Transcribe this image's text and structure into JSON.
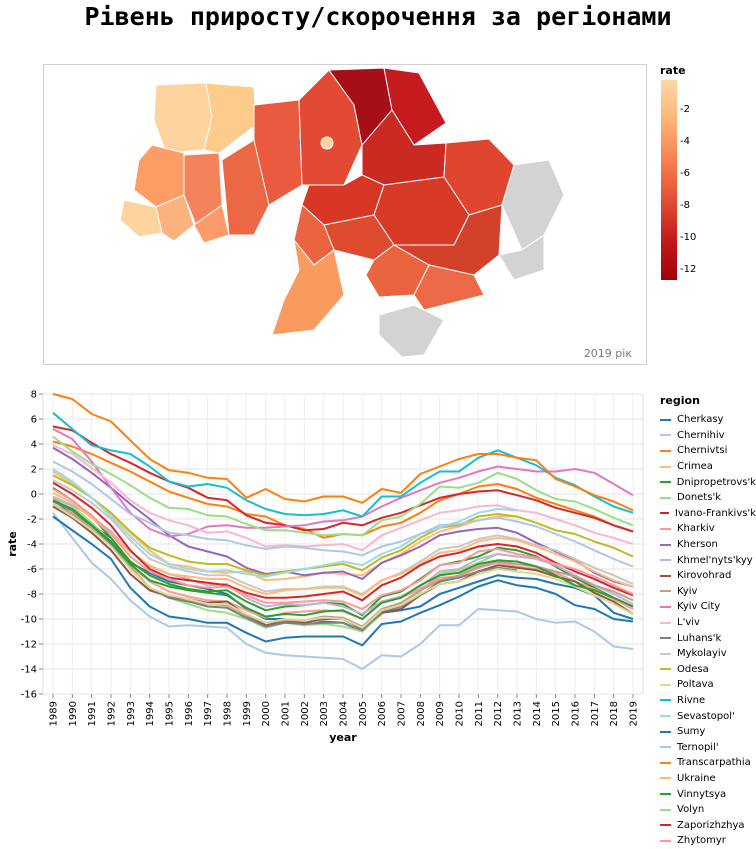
{
  "title": "Рівень приросту/скорочення за регіонами",
  "map": {
    "year_label": "2019 рік",
    "legend_title": "rate",
    "legend_ticks": [
      "-2",
      "-4",
      "-6",
      "-8",
      "-10",
      "-12"
    ],
    "colors": {
      "light": "#fed7a2",
      "dark": "#a10009",
      "nodata": "#d3d3d3"
    }
  },
  "chart_data": {
    "type": "line",
    "x": [
      1989,
      1990,
      1991,
      1992,
      1993,
      1994,
      1995,
      1996,
      1997,
      1998,
      1999,
      2000,
      2001,
      2002,
      2003,
      2004,
      2005,
      2006,
      2007,
      2008,
      2009,
      2010,
      2011,
      2012,
      2013,
      2014,
      2015,
      2016,
      2017,
      2018,
      2019
    ],
    "x_ticks": [
      "1989",
      "1990",
      "1991",
      "1992",
      "1993",
      "1994",
      "1995",
      "1996",
      "1997",
      "1998",
      "1999",
      "2000",
      "2001",
      "2002",
      "2003",
      "2004",
      "2005",
      "2006",
      "2007",
      "2008",
      "2009",
      "2010",
      "2011",
      "2012",
      "2013",
      "2014",
      "2015",
      "2016",
      "2017",
      "2018",
      "2019"
    ],
    "xlabel": "year",
    "ylabel": "rate",
    "ylim": [
      -16,
      8
    ],
    "y_ticks": [
      "8",
      "6",
      "4",
      "2",
      "0",
      "-2",
      "-4",
      "-6",
      "-8",
      "-10",
      "-12",
      "-14",
      "-16"
    ],
    "grid": true,
    "legend_title": "region",
    "legend_position": "right",
    "series": [
      {
        "name": "Cherkasy",
        "color": "#1f77b4",
        "values": [
          -0.5,
          -1.5,
          -2.5,
          -3.5,
          -5.5,
          -6.3,
          -7,
          -7.3,
          -7.6,
          -8,
          -9.2,
          -10,
          -10,
          -10.5,
          -10.2,
          -10.3,
          -11,
          -9.5,
          -9.3,
          -9,
          -8,
          -7.5,
          -7,
          -6.5,
          -6.7,
          -6.8,
          -7.2,
          -7.5,
          -8.1,
          -9.5,
          -10
        ]
      },
      {
        "name": "Chernihiv",
        "color": "#aec7e8",
        "values": [
          -1.5,
          -3.5,
          -5.5,
          -6.8,
          -8.5,
          -9.8,
          -10.6,
          -10.5,
          -10.6,
          -10.7,
          -12,
          -12.7,
          -12.9,
          -13,
          -13.1,
          -13.2,
          -14,
          -12.9,
          -13,
          -12,
          -10.5,
          -10.5,
          -9.2,
          -9.3,
          -9.4,
          -10,
          -10.3,
          -10.2,
          -11,
          -12.2,
          -12.4
        ]
      },
      {
        "name": "Chernivtsi",
        "color": "#ff7f0e",
        "values": [
          4.2,
          3.8,
          3.2,
          2.5,
          1.8,
          1,
          0.2,
          -0.3,
          -0.8,
          -1,
          -1.6,
          -1.8,
          -2.5,
          -2.8,
          -3.5,
          -3.2,
          -3.3,
          -2.6,
          -2.3,
          -1.5,
          -0.5,
          0,
          0.6,
          0.8,
          0.4,
          -0.3,
          -0.8,
          -1.3,
          -1.8,
          -2.5,
          -3
        ]
      },
      {
        "name": "Crimea",
        "color": "#ffbb78",
        "values": [
          1.8,
          0.8,
          -0.3,
          -1.6,
          -3.1,
          -4.5,
          -5.6,
          -5.8,
          -6.2,
          -6.3,
          -6.2,
          -6.9,
          -6.8,
          -6.6,
          -6.3,
          -6.4,
          -6.5,
          -5.5,
          -4.8,
          -3.8,
          -3,
          -2.6,
          -2.1,
          -1.8,
          -1.8,
          null,
          null,
          null,
          null,
          null,
          null
        ]
      },
      {
        "name": "Dnipropetrovs'k",
        "color": "#2ca02c",
        "values": [
          0.5,
          -0.5,
          -1.8,
          -3.5,
          -5.4,
          -6.5,
          -7.2,
          -7.6,
          -7.8,
          -7.7,
          -8.6,
          -9.3,
          -9,
          -8.9,
          -8.7,
          -8.8,
          -9.7,
          -8.2,
          -7.8,
          -6.8,
          -5.7,
          -5.4,
          -5,
          -4.3,
          -4.5,
          -5,
          -5.8,
          -6.7,
          -7.5,
          -8.3,
          -9
        ]
      },
      {
        "name": "Donets'k",
        "color": "#98df8a",
        "values": [
          -0.3,
          -1,
          -2.3,
          -3.8,
          -5.8,
          -7.5,
          -8.3,
          -8.8,
          -9.3,
          -9.5,
          -10,
          -10.7,
          -10.3,
          -10.5,
          -10.4,
          -10.6,
          -11,
          -9.6,
          -8.7,
          -7.8,
          -6.4,
          -6.1,
          -5.5,
          -4.8,
          -5,
          null,
          null,
          null,
          null,
          null,
          null
        ]
      },
      {
        "name": "Ivano-Frankivs'k",
        "color": "#d62728",
        "values": [
          5.4,
          5.1,
          4.1,
          3.2,
          2.5,
          1.7,
          1,
          0.5,
          -0.3,
          -0.5,
          -1.7,
          -2.3,
          -2.5,
          -2.9,
          -2.8,
          -2.3,
          -2.5,
          -1.9,
          -1.5,
          -0.9,
          -0.3,
          0,
          0.2,
          0.3,
          -0.1,
          -0.5,
          -1.1,
          -1.5,
          -1.9,
          -2.5,
          -3
        ]
      },
      {
        "name": "Kharkiv",
        "color": "#ff9896",
        "values": [
          -0.3,
          -1.5,
          -2.8,
          -4.2,
          -5.7,
          -7,
          -7.8,
          -8.2,
          -8.5,
          -8.6,
          -9.3,
          -9.9,
          -9.5,
          -9.4,
          -9.3,
          -9.4,
          -10,
          -8.6,
          -8.3,
          -7.6,
          -6.7,
          -6.6,
          -5.9,
          -5.5,
          -5.8,
          -6,
          -6.3,
          -7,
          -7.6,
          -8.4,
          -9.2
        ]
      },
      {
        "name": "Kherson",
        "color": "#9467bd",
        "values": [
          3.7,
          2.8,
          1.7,
          0.5,
          -0.8,
          -2,
          -3.3,
          -4.2,
          -4.6,
          -5,
          -5.9,
          -6.4,
          -6.2,
          -6.5,
          -6.3,
          -6.2,
          -6.8,
          -5.5,
          -4.9,
          -4.2,
          -3.3,
          -3,
          -2.8,
          -2.7,
          -3.1,
          -3.9,
          -4.6,
          -5.3,
          -6.3,
          -7,
          -7.4
        ]
      },
      {
        "name": "Khmel'nyts'kyy",
        "color": "#c5b0d5",
        "values": [
          -0.2,
          -0.9,
          -1.8,
          -3,
          -4.6,
          -5.8,
          -6.4,
          -6.8,
          -7.3,
          -7.2,
          -8.3,
          -9,
          -8.8,
          -8.9,
          -8.7,
          -9,
          -9.6,
          -8.6,
          -8.2,
          -7.4,
          -6.2,
          -6,
          -5.2,
          -4.8,
          -5,
          -5.2,
          -5.7,
          -6.5,
          -7.3,
          -8,
          -8.8
        ]
      },
      {
        "name": "Kirovohrad",
        "color": "#8c564b",
        "values": [
          -1,
          -1.9,
          -3.1,
          -4.5,
          -6.4,
          -7.7,
          -8.2,
          -8.4,
          -8.7,
          -8.6,
          -9.7,
          -10.5,
          -10.2,
          -10.3,
          -10,
          -10,
          -10.8,
          -9.5,
          -9.2,
          -8.1,
          -7.2,
          -7,
          -6.2,
          -5.7,
          -5.9,
          -6.1,
          -6.6,
          -7,
          -7.9,
          -8.6,
          -9.6
        ]
      },
      {
        "name": "Kyiv",
        "color": "#c49c94",
        "values": [
          -0.8,
          -1.6,
          -2.7,
          -4,
          -5.8,
          -7.5,
          -8.3,
          -8.6,
          -8.8,
          -8.9,
          -9.7,
          -10.3,
          -10.1,
          -10.1,
          -9.8,
          -9.9,
          -10.6,
          -9.2,
          -8.7,
          -7.7,
          -6.9,
          -6.5,
          -5.8,
          -5.4,
          -5.6,
          -5.8,
          -6.2,
          -6.6,
          -7.3,
          -7.8,
          -8.5
        ]
      },
      {
        "name": "Kyiv City",
        "color": "#e377c2",
        "values": [
          5.2,
          4.4,
          2.6,
          0.5,
          -1.5,
          -2.8,
          -3.4,
          -3.2,
          -2.6,
          -2.5,
          -2.7,
          -2.7,
          -2.6,
          -2.5,
          -2.2,
          -2.1,
          -1.8,
          -1,
          -0.3,
          0.3,
          0.9,
          1.3,
          1.8,
          2.2,
          2,
          1.8,
          1.8,
          2,
          1.7,
          0.8,
          -0.1
        ]
      },
      {
        "name": "L'viv",
        "color": "#f7b6d2",
        "values": [
          3.9,
          3.2,
          2.1,
          0.9,
          -0.5,
          -1.5,
          -2.1,
          -2.5,
          -3.1,
          -3,
          -3.5,
          -4.2,
          -4.1,
          -4.2,
          -4.1,
          -4,
          -4.5,
          -3.3,
          -2.7,
          -2.1,
          -1.5,
          -1.3,
          -1,
          -0.9,
          -1.3,
          -1.5,
          -2,
          -2.5,
          -3.1,
          -3.5,
          -4
        ]
      },
      {
        "name": "Luhans'k",
        "color": "#7f7f7f",
        "values": [
          -0.6,
          -1.3,
          -2.5,
          -4,
          -6,
          -7.5,
          -8.3,
          -8.6,
          -9,
          -9.1,
          -9.9,
          -10.6,
          -10.3,
          -10.4,
          -10.3,
          -10.3,
          -10.9,
          -9.4,
          -9,
          -8.1,
          -7,
          -6.7,
          -6.2,
          -5.9,
          -6.1,
          null,
          null,
          null,
          null,
          null,
          null
        ]
      },
      {
        "name": "Mykolayiv",
        "color": "#c7c7c7",
        "values": [
          1.1,
          0.3,
          -0.7,
          -2,
          -3.7,
          -5.2,
          -5.8,
          -6.2,
          -6.5,
          -6.5,
          -7.2,
          -7.8,
          -7.6,
          -7.6,
          -7.4,
          -7.4,
          -8,
          -6.9,
          -6.3,
          -5.4,
          -4.4,
          -4.2,
          -3.6,
          -3.3,
          -3.6,
          -4.1,
          -4.5,
          -5.2,
          -5.9,
          -6.5,
          -7.2
        ]
      },
      {
        "name": "Odesa",
        "color": "#bcbd22",
        "values": [
          1.5,
          0.7,
          -0.3,
          -1.5,
          -3,
          -4.3,
          -4.9,
          -5.4,
          -5.6,
          -5.6,
          -6.1,
          -6.5,
          -6.2,
          -6,
          -5.8,
          -5.6,
          -6.1,
          -5.1,
          -4.5,
          -3.5,
          -2.7,
          -2.5,
          -1.8,
          -1.6,
          -1.8,
          -2.3,
          -2.9,
          -3.2,
          -3.8,
          -4.3,
          -5
        ]
      },
      {
        "name": "Poltava",
        "color": "#dbdb8d",
        "values": [
          -0.8,
          -1.8,
          -2.9,
          -4.2,
          -6,
          -7.5,
          -8.1,
          -8.4,
          -8.8,
          -8.8,
          -9.6,
          -10.3,
          -10,
          -10.1,
          -9.9,
          -10,
          -10.7,
          -9.3,
          -8.9,
          -8,
          -7.2,
          -7,
          -6.4,
          -6,
          -6.2,
          -6.4,
          -6.8,
          -7.4,
          -8.1,
          -8.8,
          -9.6
        ]
      },
      {
        "name": "Rivne",
        "color": "#17becf",
        "values": [
          6.5,
          5.2,
          3.9,
          3.5,
          3.2,
          2.2,
          1,
          0.6,
          0.8,
          0.5,
          -0.5,
          -1.2,
          -1.6,
          -1.7,
          -1.6,
          -1.3,
          -1.8,
          -0.2,
          -0.2,
          0.9,
          1.8,
          1.8,
          2.9,
          3.5,
          2.9,
          2.3,
          1.3,
          0.7,
          -0.2,
          -1,
          -1.5
        ]
      },
      {
        "name": "Sevastopol'",
        "color": "#9edae5",
        "values": [
          2,
          1,
          -0.3,
          -1.8,
          -3.4,
          -4.8,
          -5.6,
          -6,
          -6.2,
          -6.1,
          -6.4,
          -6.6,
          -6.3,
          -6,
          -5.7,
          -5.4,
          -5.7,
          -4.8,
          -4.2,
          -3.2,
          -2.7,
          -2.2,
          -1.5,
          -1.2,
          -1.3,
          null,
          null,
          null,
          null,
          null,
          null
        ]
      },
      {
        "name": "Sumy",
        "color": "#1f77b4",
        "values": [
          -1.8,
          -2.9,
          -4,
          -5.2,
          -7.5,
          -9,
          -9.8,
          -10,
          -10.3,
          -10.3,
          -11.1,
          -11.8,
          -11.5,
          -11.4,
          -11.4,
          -11.4,
          -12.1,
          -10.4,
          -10.2,
          -9.5,
          -8.9,
          -8.2,
          -7.4,
          -6.9,
          -7.3,
          -7.5,
          -8,
          -8.9,
          -9.2,
          -10,
          -10.2
        ]
      },
      {
        "name": "Ternopil'",
        "color": "#aec7e8",
        "values": [
          2.6,
          1.8,
          0.8,
          -0.4,
          -1.6,
          -2.3,
          -3.1,
          -3.3,
          -3.6,
          -3.7,
          -4.1,
          -4.4,
          -4.2,
          -4.3,
          -4.5,
          -4.6,
          -4.9,
          -4.2,
          -3.8,
          -3.2,
          -2.5,
          -2.4,
          -2.1,
          -1.9,
          -2.2,
          -2.6,
          -3.2,
          -3.8,
          -4.5,
          -5.2,
          -5.8
        ]
      },
      {
        "name": "Transcarpathia",
        "color": "#ff7f0e",
        "values": [
          8,
          7.6,
          6.4,
          5.8,
          4.3,
          2.8,
          1.9,
          1.7,
          1.3,
          1.2,
          -0.3,
          0.4,
          -0.4,
          -0.6,
          -0.2,
          -0.2,
          -0.7,
          0.4,
          0.1,
          1.6,
          2.2,
          2.8,
          3.2,
          3.2,
          2.9,
          2.7,
          1.2,
          0.6,
          -0.1,
          -0.6,
          -1.3
        ]
      },
      {
        "name": "Ukraine",
        "color": "#ffbb78",
        "values": [
          0.1,
          -0.7,
          -1.9,
          -3.2,
          -4.6,
          -5.7,
          -6.4,
          -6.6,
          -6.8,
          -6.8,
          -7.5,
          -8,
          -7.7,
          -7.6,
          -7.5,
          -7.5,
          -8.1,
          -6.9,
          -6.4,
          -5.6,
          -4.7,
          -4.5,
          -3.8,
          -3.5,
          -3.7,
          -4.2,
          -4.8,
          -5.4,
          -6.2,
          -6.9,
          -7.4
        ]
      },
      {
        "name": "Vinnytsya",
        "color": "#2ca02c",
        "values": [
          -0.5,
          -1.2,
          -2.5,
          -3.8,
          -5.6,
          -6.9,
          -7.4,
          -7.7,
          -7.9,
          -8.1,
          -9.1,
          -9.8,
          -9.6,
          -9.7,
          -9.4,
          -9.3,
          -10,
          -8.7,
          -8.3,
          -7.3,
          -6.5,
          -6.3,
          -5.6,
          -5.3,
          -5.4,
          -5.8,
          -6.5,
          -7.3,
          -7.7,
          -8.3,
          -9
        ]
      },
      {
        "name": "Volyn",
        "color": "#98df8a",
        "values": [
          4.6,
          3.4,
          2.4,
          1.6,
          0.7,
          -0.3,
          -1.1,
          -1.2,
          -1.7,
          -1.8,
          -2.4,
          -2.9,
          -2.9,
          -3.1,
          -3.3,
          -3.2,
          -3.3,
          -2.1,
          -1.8,
          -0.8,
          0.6,
          0.5,
          0.9,
          1.7,
          1.2,
          0.3,
          -0.4,
          -0.6,
          -1.2,
          -1.9,
          -2.5
        ]
      },
      {
        "name": "Zaporizhzhya",
        "color": "#d62728",
        "values": [
          0.9,
          0,
          -1.1,
          -2.5,
          -4.5,
          -6,
          -6.7,
          -6.9,
          -7.1,
          -7.3,
          -7.9,
          -8.3,
          -8.3,
          -8.2,
          -8,
          -7.8,
          -8.5,
          -7.3,
          -6.7,
          -5.7,
          -5,
          -4.7,
          -4.2,
          -4,
          -4.2,
          -4.7,
          -5.5,
          -6.2,
          -6.8,
          -7.5,
          -8.1
        ]
      },
      {
        "name": "Zhytomyr",
        "color": "#ff9896",
        "values": [
          0.4,
          -0.5,
          -1.7,
          -3.2,
          -5,
          -6.2,
          -6.8,
          -7.3,
          -7.5,
          -7.4,
          -8.1,
          -8.7,
          -8.7,
          -8.6,
          -8.5,
          -8.6,
          -9.2,
          -8.1,
          -7.7,
          -6.9,
          -5.7,
          -5.5,
          -4.6,
          -4.4,
          -4.8,
          -5.1,
          -5.6,
          -6,
          -6.6,
          -7.3,
          -8
        ]
      }
    ]
  }
}
